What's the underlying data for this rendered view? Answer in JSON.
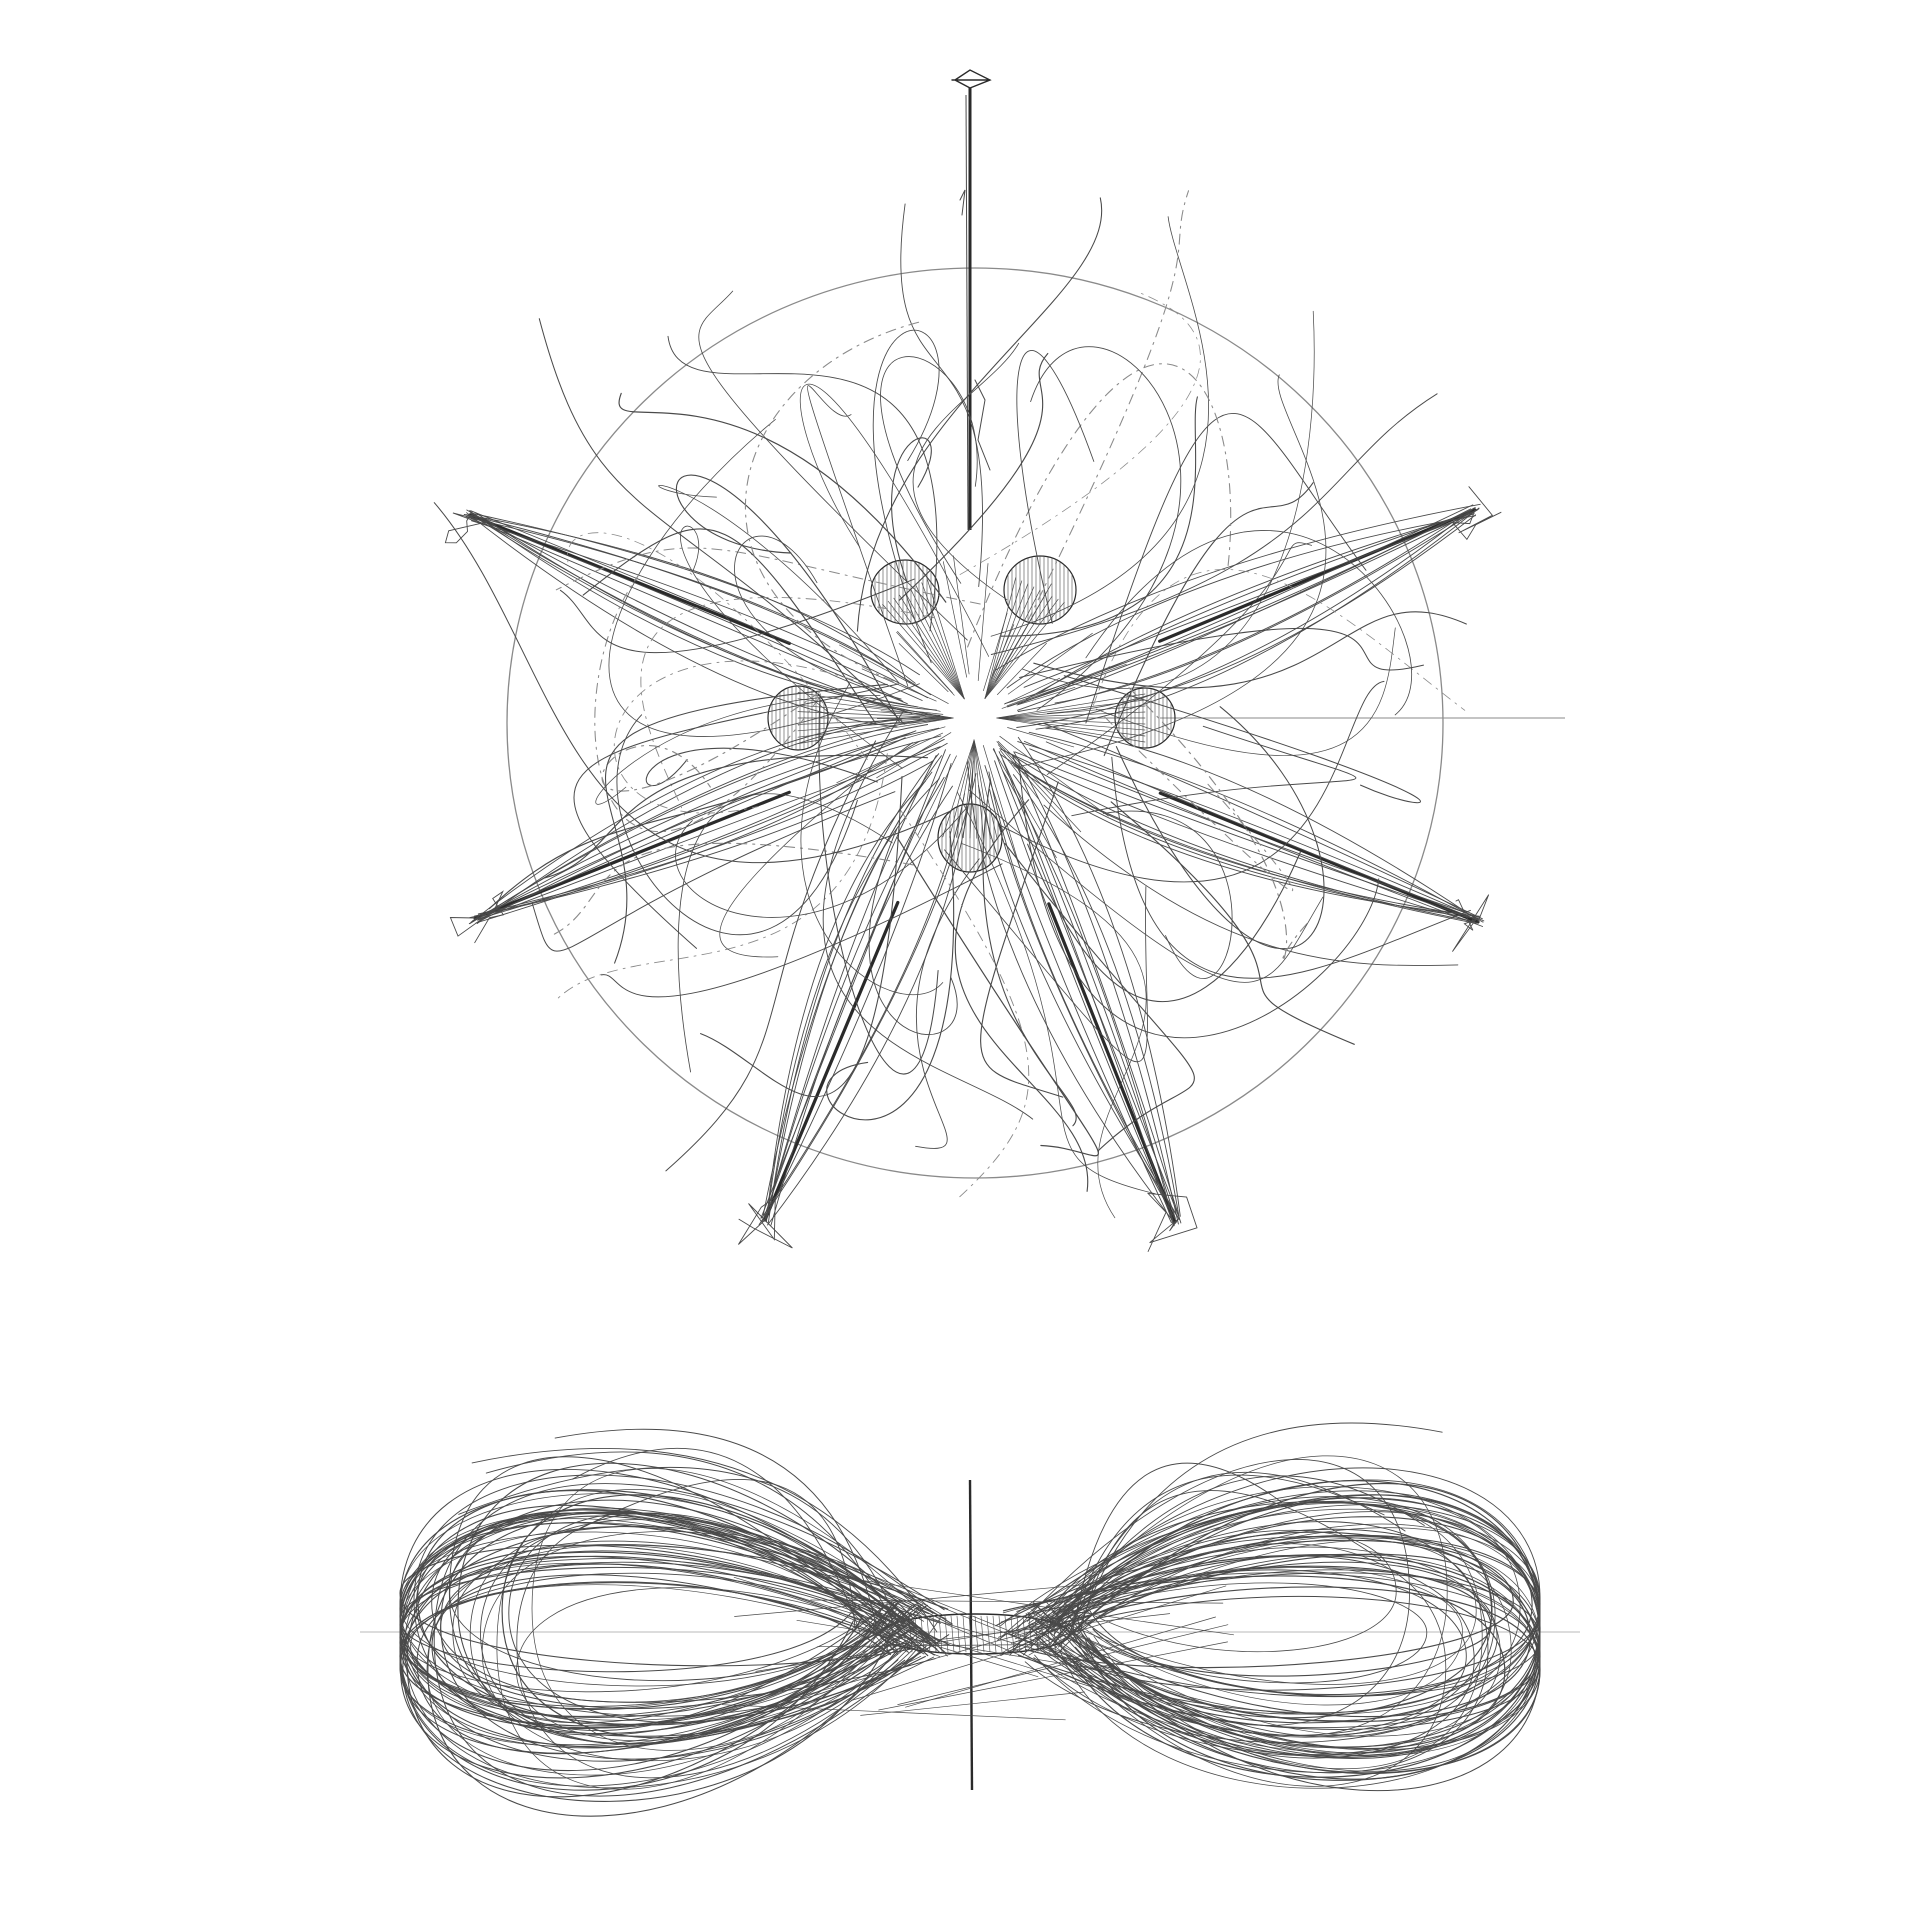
{
  "drawing": {
    "ink_color": "#4a4a4a",
    "ink_dark": "#2a2a2a",
    "guide_color": "#b8b8b8",
    "background": "#ffffff",
    "views": [
      {
        "id": "plan-view",
        "kind": "radial-six-arm"
      },
      {
        "id": "elevation-view",
        "kind": "horizontal-loops"
      }
    ]
  }
}
